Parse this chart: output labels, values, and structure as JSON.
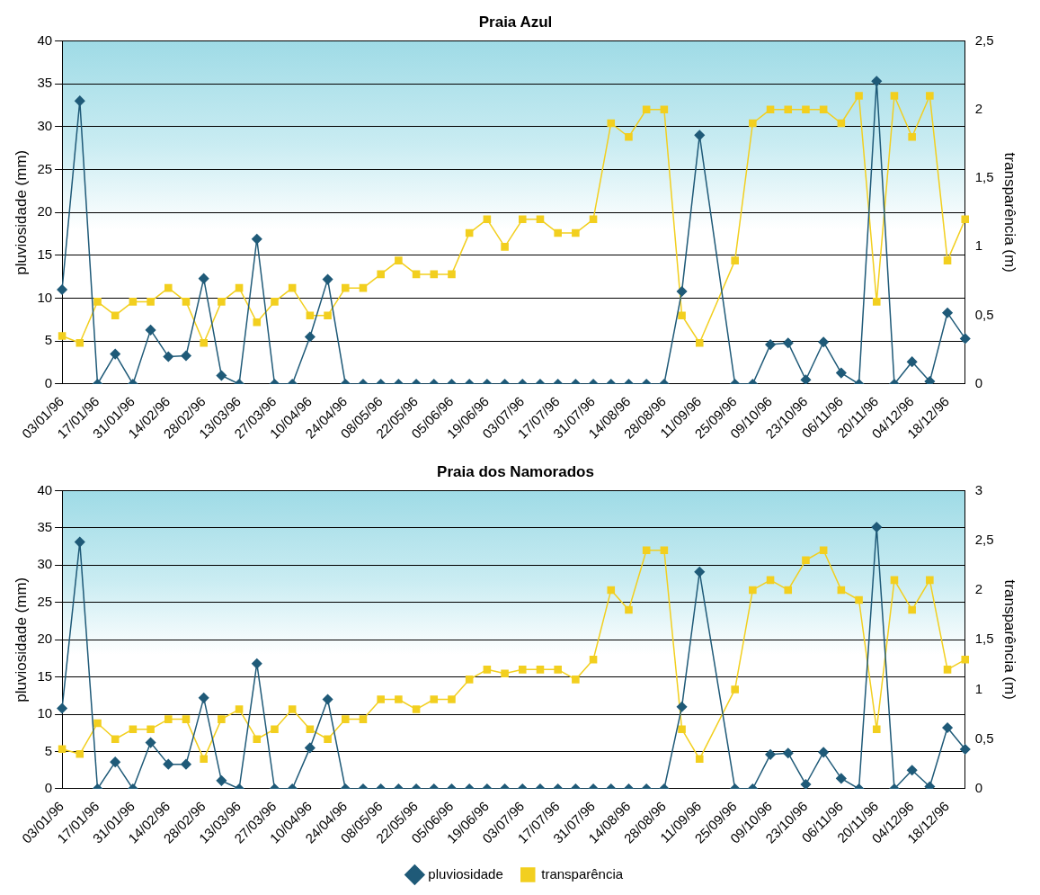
{
  "chart_data": [
    {
      "type": "line",
      "title": "Praia Azul",
      "ylabel": "pluviosidade (mm)",
      "y2label": "transparência (m)",
      "categories": [
        "03/01/96",
        null,
        "17/01/96",
        null,
        "31/01/96",
        null,
        "14/02/96",
        null,
        "28/02/96",
        null,
        "13/03/96",
        null,
        "27/03/96",
        null,
        "10/04/96",
        null,
        "24/04/96",
        null,
        "08/05/96",
        null,
        "22/05/96",
        null,
        "05/06/96",
        null,
        "19/06/96",
        null,
        "03/07/96",
        null,
        "17/07/96",
        null,
        "31/07/96",
        null,
        "14/08/96",
        null,
        "28/08/96",
        null,
        "11/09/96",
        null,
        "25/09/96",
        null,
        "09/10/96",
        null,
        "23/10/96",
        null,
        "06/11/96",
        null,
        "20/11/96",
        null,
        "04/12/96",
        null,
        "18/12/96",
        null
      ],
      "series": [
        {
          "color": "#1f5a78",
          "marker": "diamond",
          "values": [
            11,
            33,
            0,
            3.5,
            0,
            6.3,
            3.2,
            3.3,
            12.3,
            1,
            0,
            16.9,
            0,
            0,
            5.5,
            12.2,
            0,
            0,
            0,
            0,
            0,
            0,
            0,
            0,
            0,
            0,
            0,
            0,
            0,
            0,
            0,
            0,
            0,
            0,
            0,
            10.8,
            29,
            null,
            0,
            0,
            4.6,
            4.8,
            0.5,
            4.9,
            1.3,
            0,
            35.3,
            0,
            2.6,
            0.3,
            8.3,
            5.3
          ]
        },
        {
          "color": "#f2cf1f",
          "marker": "square",
          "axis": "y2",
          "values": [
            0.35,
            0.3,
            0.6,
            0.5,
            0.6,
            0.6,
            0.7,
            0.6,
            0.3,
            0.6,
            0.7,
            0.45,
            0.6,
            0.7,
            0.5,
            0.5,
            0.7,
            0.7,
            0.8,
            0.9,
            0.8,
            0.8,
            0.8,
            1.1,
            1.2,
            1,
            1.2,
            1.2,
            1.1,
            1.1,
            1.2,
            1.9,
            1.8,
            2,
            2,
            0.5,
            0.3,
            null,
            0.9,
            1.9,
            2,
            2,
            2,
            2,
            1.9,
            2.1,
            0.6,
            2.1,
            1.8,
            2.1,
            0.9,
            1.2
          ]
        }
      ],
      "ylim": [
        0,
        40
      ],
      "yticks": [
        0,
        5,
        10,
        15,
        20,
        25,
        30,
        35,
        40
      ],
      "y2lim": [
        0,
        2.5
      ],
      "y2ticks": [
        0,
        {
          "value": 0.5,
          "label": "0,5"
        },
        1,
        {
          "value": 1.5,
          "label": "1,5"
        },
        2,
        {
          "value": 2.5,
          "label": "2,5"
        }
      ],
      "grid": "y",
      "legend": false,
      "line_style": "solid"
    },
    {
      "type": "line",
      "title": "Praia dos Namorados",
      "ylabel": "pluviosidade (mm)",
      "y2label": "transparência (m)",
      "categories": [
        "03/01/96",
        null,
        "17/01/96",
        null,
        "31/01/96",
        null,
        "14/02/96",
        null,
        "28/02/96",
        null,
        "13/03/96",
        null,
        "27/03/96",
        null,
        "10/04/96",
        null,
        "24/04/96",
        null,
        "08/05/96",
        null,
        "22/05/96",
        null,
        "05/06/96",
        null,
        "19/06/96",
        null,
        "03/07/96",
        null,
        "17/07/96",
        null,
        "31/07/96",
        null,
        "14/08/96",
        null,
        "28/08/96",
        null,
        "11/09/96",
        null,
        "25/09/96",
        null,
        "09/10/96",
        null,
        "23/10/96",
        null,
        "06/11/96",
        null,
        "20/11/96",
        null,
        "04/12/96",
        null,
        "18/12/96",
        null
      ],
      "series": [
        {
          "name": "pluviosidade",
          "color": "#1f5a78",
          "marker": "diamond",
          "values": [
            10.8,
            33.1,
            0,
            3.6,
            0,
            6.2,
            3.3,
            3.3,
            12.2,
            1.1,
            0,
            16.8,
            0,
            0,
            5.5,
            12,
            0,
            0,
            0,
            0,
            0,
            0,
            0,
            0,
            0,
            0,
            0,
            0,
            0,
            0,
            0,
            0,
            0,
            0,
            0,
            11,
            29.1,
            null,
            0,
            0,
            4.6,
            4.8,
            0.6,
            4.9,
            1.4,
            0,
            35.1,
            0,
            2.5,
            0.3,
            8.2,
            5.3
          ]
        },
        {
          "name": "transparência",
          "color": "#f2cf1f",
          "marker": "square",
          "axis": "y2",
          "values": [
            0.4,
            0.35,
            0.66,
            0.5,
            0.6,
            0.6,
            0.7,
            0.7,
            0.3,
            0.7,
            0.8,
            0.5,
            0.6,
            0.8,
            0.6,
            0.5,
            0.7,
            0.7,
            0.9,
            0.9,
            0.8,
            0.9,
            0.9,
            1.1,
            1.2,
            1.16,
            1.2,
            1.2,
            1.2,
            1.1,
            1.3,
            2,
            1.8,
            2.4,
            2.4,
            0.6,
            0.3,
            null,
            1,
            2,
            2.1,
            2,
            2.3,
            2.4,
            2,
            1.9,
            0.6,
            2.1,
            1.8,
            2.1,
            1.2,
            1.3
          ]
        }
      ],
      "ylim": [
        0,
        40
      ],
      "yticks": [
        0,
        5,
        10,
        15,
        20,
        25,
        30,
        35,
        40
      ],
      "y2lim": [
        0,
        3
      ],
      "y2ticks": [
        0,
        {
          "value": 0.5,
          "label": "0,5"
        },
        1,
        {
          "value": 1.5,
          "label": "1,5"
        },
        2,
        {
          "value": 2.5,
          "label": "2,5"
        },
        3
      ],
      "grid": "y",
      "legend": "bottom",
      "line_style": "solid"
    }
  ]
}
